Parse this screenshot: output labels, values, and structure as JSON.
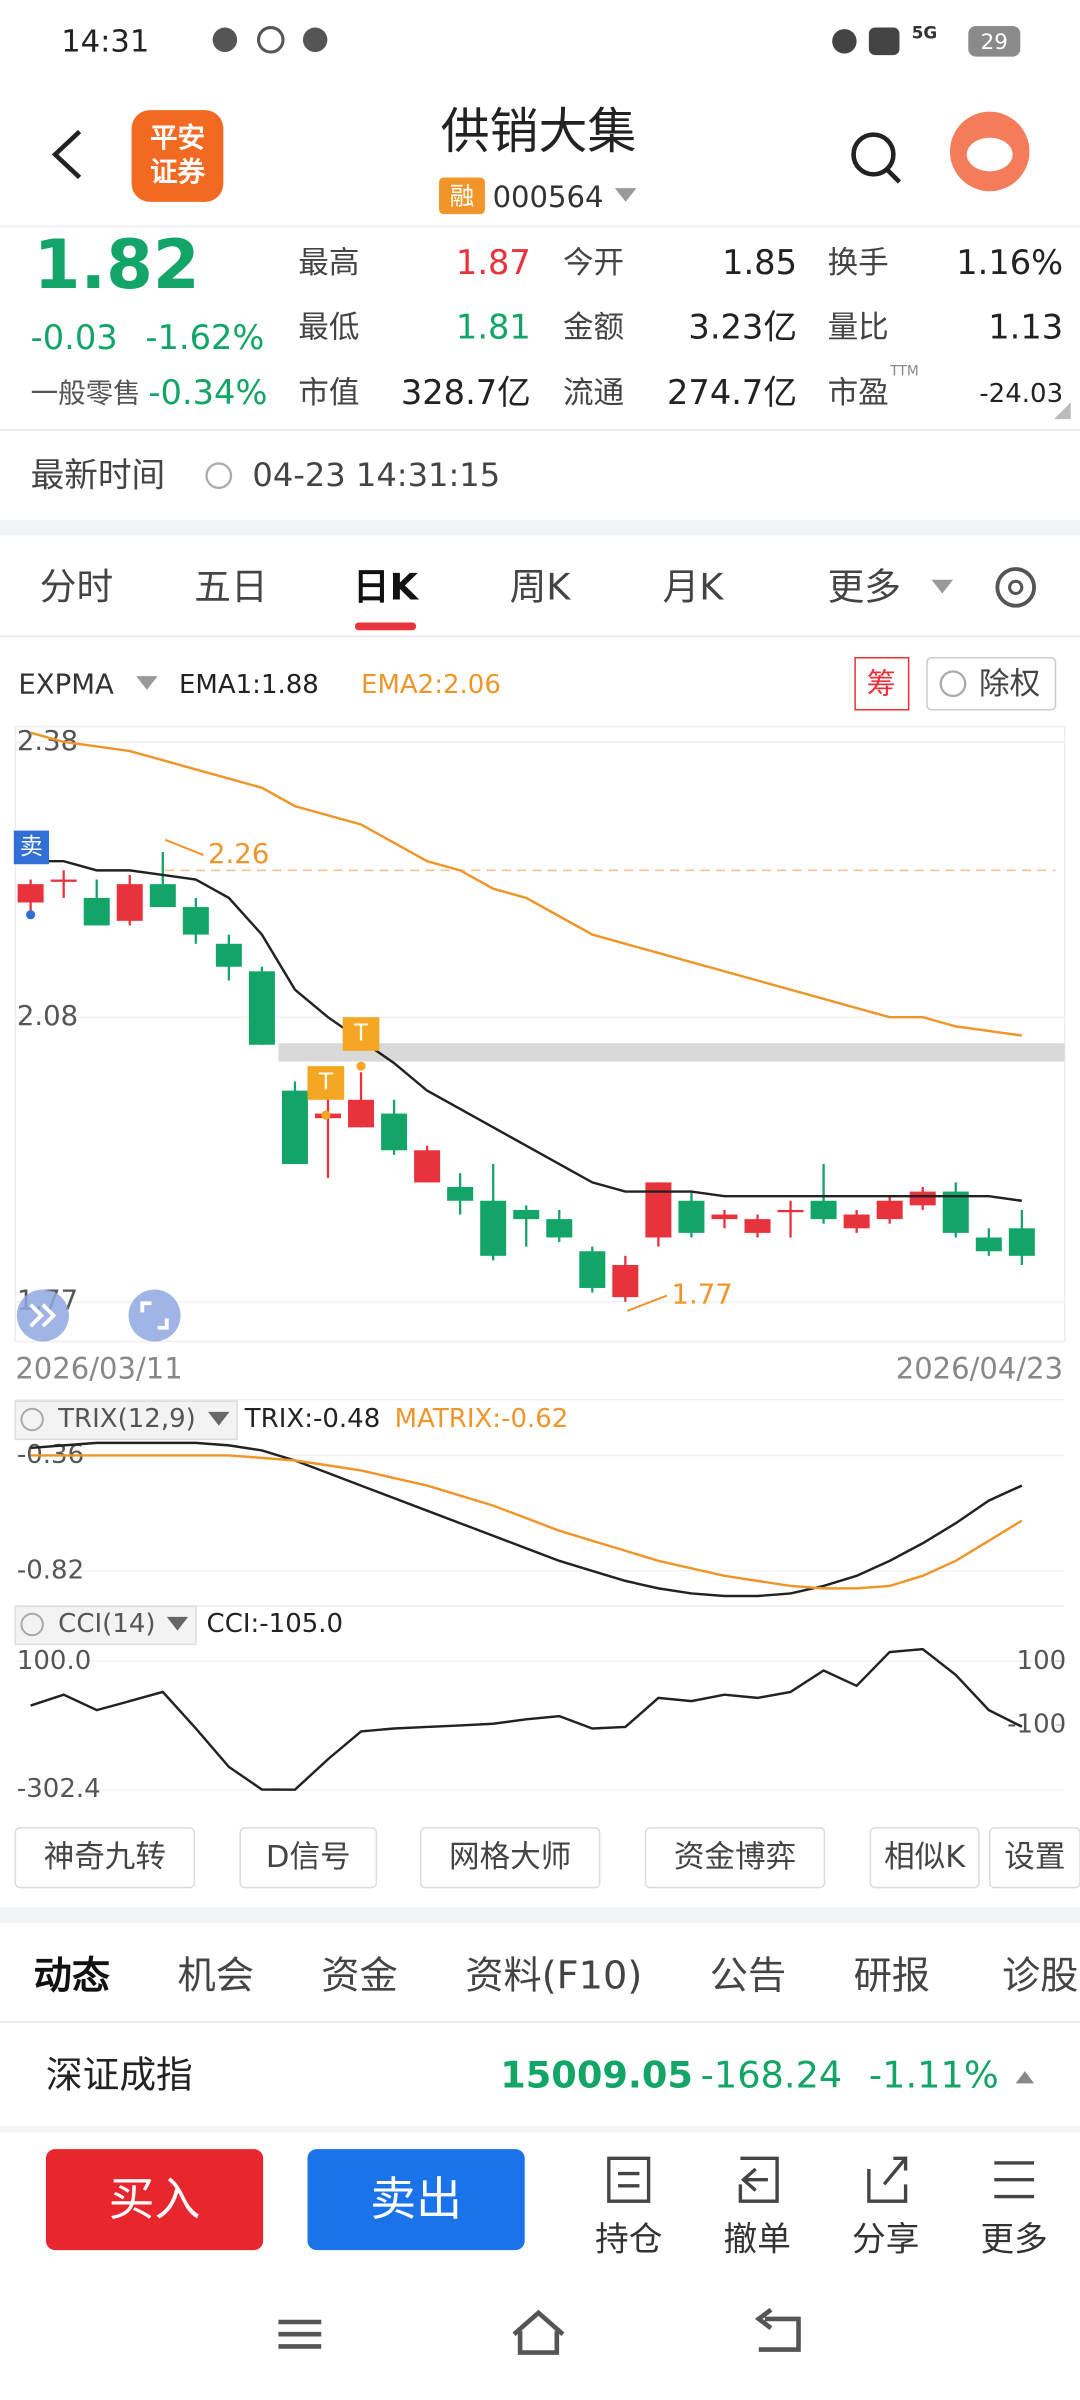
{
  "status_bar": {
    "time": "14:31",
    "network": "5G",
    "battery": "29"
  },
  "header": {
    "logo": [
      "平安",
      "证券"
    ],
    "title": "供销大集",
    "badge": "融",
    "code": "000564"
  },
  "quote": {
    "price": "1.82",
    "change": "-0.03",
    "change_pct": "-1.62%",
    "sector": "一般零售",
    "sector_pct": "-0.34%",
    "stats": [
      [
        "最高",
        "1.87"
      ],
      [
        "今开",
        "1.85"
      ],
      [
        "换手",
        "1.16%"
      ],
      [
        "最低",
        "1.81"
      ],
      [
        "金额",
        "3.23亿"
      ],
      [
        "量比",
        "1.13"
      ],
      [
        "市值",
        "328.7亿"
      ],
      [
        "流通",
        "274.7亿"
      ],
      [
        "市盈",
        "-24.03"
      ]
    ],
    "pe_note": "TTM"
  },
  "time_row": {
    "label": "最新时间",
    "value": "04-23 14:31:15"
  },
  "period_tabs": {
    "items": [
      "分时",
      "五日",
      "日K",
      "周K",
      "月K",
      "更多"
    ],
    "selected": 2
  },
  "chart_toolbar": {
    "indicator": "EXPMA",
    "chips": "筹",
    "adjust": "除权"
  },
  "chart_data": [
    {
      "type": "candlestick",
      "categories": [
        "2026/03/11",
        null,
        null,
        null,
        null,
        null,
        null,
        null,
        null,
        null,
        null,
        null,
        null,
        null,
        null,
        null,
        null,
        null,
        null,
        null,
        null,
        null,
        null,
        null,
        null,
        null,
        null,
        null,
        null,
        null,
        "2026/04/23"
      ],
      "open": [
        2.205,
        2.23,
        2.21,
        2.185,
        2.225,
        2.2,
        2.16,
        2.13,
        2.0,
        1.97,
        1.96,
        1.975,
        1.9,
        1.895,
        1.88,
        1.87,
        1.86,
        1.825,
        1.775,
        1.84,
        1.88,
        1.86,
        1.845,
        1.87,
        1.88,
        1.85,
        1.86,
        1.875,
        1.89,
        1.84,
        1.85
      ],
      "high": [
        2.23,
        2.24,
        2.23,
        2.235,
        2.26,
        2.21,
        2.17,
        2.135,
        2.01,
        2.02,
        2.02,
        1.99,
        1.94,
        1.91,
        1.92,
        1.875,
        1.87,
        1.83,
        1.82,
        1.9,
        1.89,
        1.87,
        1.865,
        1.88,
        1.92,
        1.87,
        1.885,
        1.895,
        1.9,
        1.85,
        1.87
      ],
      "low": [
        2.19,
        2.21,
        2.18,
        2.18,
        2.2,
        2.16,
        2.12,
        2.05,
        1.92,
        1.905,
        1.96,
        1.93,
        1.9,
        1.865,
        1.815,
        1.83,
        1.835,
        1.78,
        1.77,
        1.83,
        1.84,
        1.85,
        1.84,
        1.84,
        1.855,
        1.845,
        1.855,
        1.87,
        1.84,
        1.82,
        1.81
      ],
      "close": [
        2.225,
        2.23,
        2.18,
        2.225,
        2.2,
        2.17,
        2.135,
        2.05,
        1.92,
        1.975,
        1.99,
        1.935,
        1.935,
        1.88,
        1.82,
        1.86,
        1.84,
        1.785,
        1.81,
        1.9,
        1.845,
        1.865,
        1.86,
        1.87,
        1.86,
        1.865,
        1.88,
        1.89,
        1.845,
        1.825,
        1.82
      ],
      "series": [
        {
          "name": "EMA1:1.88",
          "color": "#222222",
          "values": [
            2.25,
            2.25,
            2.24,
            2.24,
            2.235,
            2.23,
            2.21,
            2.17,
            2.11,
            2.08,
            2.055,
            2.03,
            2.0,
            1.98,
            1.96,
            1.94,
            1.92,
            1.9,
            1.89,
            1.89,
            1.89,
            1.885,
            1.885,
            1.885,
            1.885,
            1.885,
            1.885,
            1.885,
            1.885,
            1.885,
            1.88
          ]
        },
        {
          "name": "EMA2:2.06",
          "color": "#f0952a",
          "values": [
            2.39,
            2.38,
            2.375,
            2.37,
            2.36,
            2.35,
            2.34,
            2.33,
            2.31,
            2.3,
            2.29,
            2.27,
            2.25,
            2.24,
            2.22,
            2.21,
            2.19,
            2.17,
            2.16,
            2.15,
            2.14,
            2.13,
            2.12,
            2.11,
            2.1,
            2.09,
            2.08,
            2.08,
            2.07,
            2.065,
            2.06
          ]
        }
      ],
      "ylim": [
        1.74,
        2.4
      ],
      "yticks": [
        2.38,
        2.08,
        1.77
      ],
      "up_color": "#e8323c",
      "down_color": "#12a567",
      "max_marker": 2.26,
      "min_marker": 1.77,
      "sell_badge": "卖",
      "t_badges": [
        "T",
        "T"
      ]
    },
    {
      "type": "line",
      "title": "TRIX(12,9)",
      "series": [
        {
          "name": "TRIX:-0.48",
          "color": "#222222",
          "values": [
            -0.33,
            -0.32,
            -0.31,
            -0.31,
            -0.31,
            -0.31,
            -0.32,
            -0.34,
            -0.38,
            -0.43,
            -0.48,
            -0.53,
            -0.58,
            -0.63,
            -0.68,
            -0.73,
            -0.78,
            -0.82,
            -0.86,
            -0.89,
            -0.91,
            -0.92,
            -0.92,
            -0.91,
            -0.88,
            -0.84,
            -0.78,
            -0.71,
            -0.63,
            -0.54,
            -0.48
          ]
        },
        {
          "name": "MATRIX:-0.62",
          "color": "#f0952a",
          "values": [
            -0.36,
            -0.36,
            -0.36,
            -0.36,
            -0.36,
            -0.36,
            -0.36,
            -0.37,
            -0.38,
            -0.4,
            -0.42,
            -0.45,
            -0.48,
            -0.52,
            -0.56,
            -0.61,
            -0.66,
            -0.7,
            -0.74,
            -0.78,
            -0.81,
            -0.84,
            -0.86,
            -0.88,
            -0.89,
            -0.89,
            -0.88,
            -0.84,
            -0.78,
            -0.7,
            -0.62
          ]
        }
      ],
      "ylim": [
        -0.93,
        -0.29
      ],
      "yticks": [
        -0.36,
        -0.82
      ]
    },
    {
      "type": "line",
      "title": "CCI(14)",
      "series": [
        {
          "name": "CCI:-105.0",
          "color": "#222222",
          "values": [
            -39,
            -5,
            -53,
            -25,
            4,
            -111,
            -231,
            -302,
            -302.4,
            -207,
            -120,
            -111,
            -106,
            -101,
            -96,
            -82,
            -72,
            -111,
            -106,
            -15,
            -25,
            -5,
            -15,
            4,
            71,
            23,
            129,
            138,
            57,
            -53,
            -105
          ]
        }
      ],
      "ylim": [
        -341,
        153
      ],
      "yticks": [
        {
          "value": 100,
          "label": "100.0"
        },
        -302.4
      ],
      "y2ticks": [
        100,
        -100
      ]
    }
  ],
  "tools": [
    "神奇九转",
    "D信号",
    "网格大师",
    "资金博弈",
    "相似K",
    "设置"
  ],
  "info_tabs": {
    "items": [
      "动态",
      "机会",
      "资金",
      "资料(F10)",
      "公告",
      "研报",
      "诊股"
    ],
    "selected": 0
  },
  "index_row": {
    "name": "深证成指",
    "value": "15009.05",
    "change": "-168.24",
    "change_pct": "-1.11%"
  },
  "actions": {
    "buy": "买入",
    "sell": "卖出",
    "items": [
      "持仓",
      "撤单",
      "分享",
      "更多"
    ]
  }
}
